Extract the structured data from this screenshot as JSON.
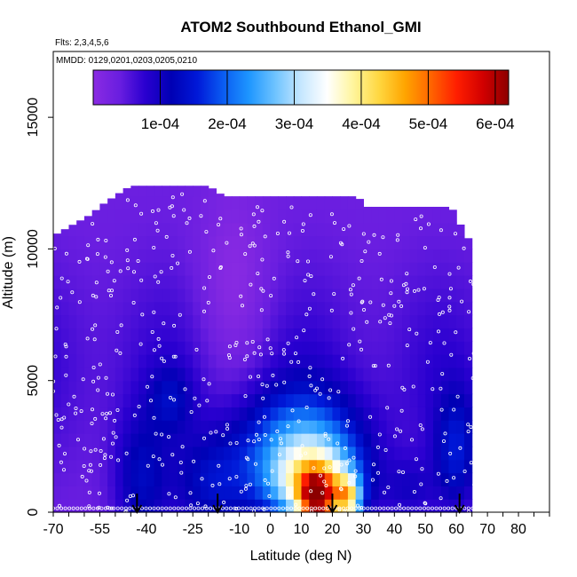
{
  "chart_data": {
    "type": "heatmap",
    "title": "ATOM2 Southbound Ethanol_GMI",
    "subtitle_lines": [
      "Flts: 2,3,4,5,6",
      "MMDD: 0129,0201,0203,0205,0210"
    ],
    "xlabel": "Latitude (deg N)",
    "ylabel": "Altitude (m)",
    "xlim": [
      -70,
      90
    ],
    "ylim": [
      0,
      17500
    ],
    "x_tick_labels": [
      "-70",
      "-55",
      "-40",
      "-25",
      "-10",
      "0",
      "10",
      "20",
      "30",
      "40",
      "50",
      "60",
      "70",
      "80"
    ],
    "x_tick_values": [
      -70,
      -55,
      -40,
      -25,
      -10,
      0,
      10,
      20,
      30,
      40,
      50,
      60,
      70,
      80
    ],
    "y_tick_labels": [
      "0",
      "5000",
      "10000",
      "15000"
    ],
    "y_tick_values": [
      0,
      5000,
      10000,
      15000
    ],
    "colorbar": {
      "tick_labels": [
        "1e-04",
        "2e-04",
        "3e-04",
        "4e-04",
        "5e-04",
        "6e-04"
      ],
      "tick_values": [
        0.0001,
        0.0002,
        0.0003,
        0.0004,
        0.0005,
        0.0006
      ],
      "range": [
        0.0,
        0.00062
      ],
      "colors": [
        "#8a2be2",
        "#6a1ee0",
        "#2a00d0",
        "#0000b4",
        "#0018d8",
        "#0a5cf2",
        "#1e96ff",
        "#6ec3ff",
        "#c5e7ff",
        "#ffffff",
        "#fff59e",
        "#ffd740",
        "#ffa500",
        "#ff6400",
        "#ff1e00",
        "#d20000",
        "#8c0000"
      ]
    },
    "flight_markers_lat": [
      -43,
      -17,
      20,
      61
    ],
    "grid": false
  }
}
